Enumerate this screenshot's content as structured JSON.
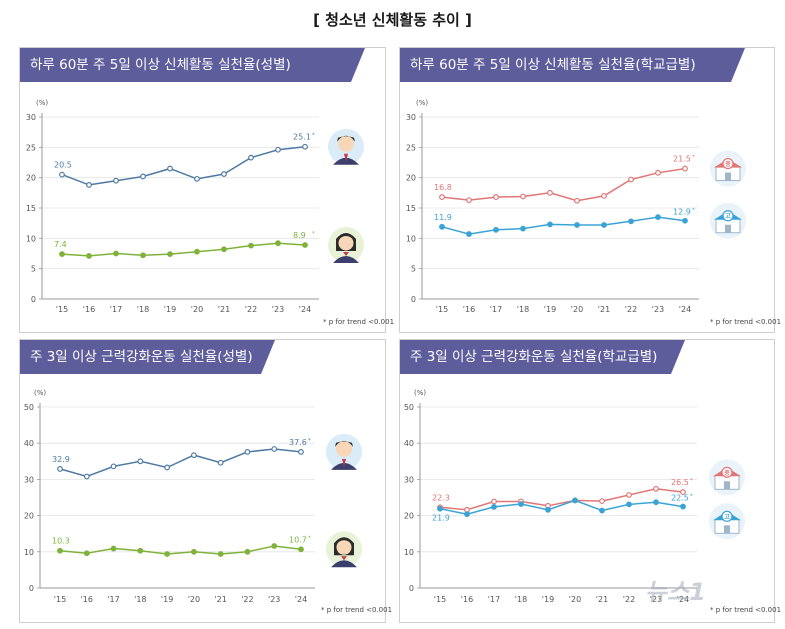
{
  "title": "[ 청소년 신체활동 추이 ]",
  "footnote": "* p for trend <0.001",
  "watermark": "뉴스1",
  "colors": {
    "header": "#5e5d9c",
    "boy": "#4f7aa3",
    "girl": "#7fb23a",
    "middle": "#e07676",
    "high": "#3aa3d6"
  },
  "chart_data": [
    {
      "type": "line",
      "title": "하루 60분 주 5일 이상 신체활동 실천율(성별)",
      "ylabel": "(%)",
      "ylim": [
        0,
        30
      ],
      "yticks": [
        "0",
        "5",
        "10",
        "15",
        "20",
        "25",
        "30"
      ],
      "categories": [
        "'15",
        "'16",
        "'17",
        "'18",
        "'19",
        "'20",
        "'21",
        "'22",
        "'23",
        "'24"
      ],
      "series": [
        {
          "key": "boy",
          "color": "#4f7aa3",
          "icon": "boy-student-icon",
          "values": [
            20.5,
            18.8,
            19.5,
            20.2,
            21.5,
            19.8,
            20.6,
            23.3,
            24.6,
            25.1
          ],
          "start_label": "20.5",
          "end_label": "25.1"
        },
        {
          "key": "girl",
          "color": "#7fb23a",
          "icon": "girl-student-icon",
          "values": [
            7.4,
            7.1,
            7.5,
            7.2,
            7.4,
            7.8,
            8.2,
            8.8,
            9.2,
            8.9
          ],
          "start_label": "7.4",
          "end_label": "8.9"
        }
      ]
    },
    {
      "type": "line",
      "title": "하루 60분 주 5일 이상 신체활동 실천율(학교급별)",
      "ylabel": "(%)",
      "ylim": [
        0,
        30
      ],
      "yticks": [
        "0",
        "5",
        "10",
        "15",
        "20",
        "25",
        "30"
      ],
      "categories": [
        "'15",
        "'16",
        "'17",
        "'18",
        "'19",
        "'20",
        "'21",
        "'22",
        "'23",
        "'24"
      ],
      "series": [
        {
          "key": "middle",
          "color": "#e07676",
          "icon": "middle-school-icon",
          "badge": "중",
          "values": [
            16.8,
            16.3,
            16.8,
            16.9,
            17.5,
            16.2,
            17.0,
            19.7,
            20.8,
            21.5
          ],
          "start_label": "16.8",
          "end_label": "21.5"
        },
        {
          "key": "high",
          "color": "#3aa3d6",
          "icon": "high-school-icon",
          "badge": "고",
          "values": [
            11.9,
            10.7,
            11.4,
            11.6,
            12.3,
            12.2,
            12.2,
            12.8,
            13.5,
            12.9
          ],
          "start_label": "11.9",
          "end_label": "12.9"
        }
      ]
    },
    {
      "type": "line",
      "title": "주 3일 이상 근력강화운동 실천율(성별)",
      "ylabel": "(%)",
      "ylim": [
        0,
        50
      ],
      "yticks": [
        "0",
        "10",
        "20",
        "30",
        "40",
        "50"
      ],
      "categories": [
        "'15",
        "'16",
        "'17",
        "'18",
        "'19",
        "'20",
        "'21",
        "'22",
        "'23",
        "'24"
      ],
      "series": [
        {
          "key": "boy",
          "color": "#4f7aa3",
          "icon": "boy-student-icon",
          "values": [
            32.9,
            30.8,
            33.6,
            35.0,
            33.3,
            36.7,
            34.6,
            37.6,
            38.4,
            37.6
          ],
          "start_label": "32.9",
          "end_label": "37.6"
        },
        {
          "key": "girl",
          "color": "#7fb23a",
          "icon": "girl-student-icon",
          "values": [
            10.3,
            9.6,
            10.9,
            10.3,
            9.4,
            10.0,
            9.4,
            10.0,
            11.6,
            10.7
          ],
          "start_label": "10.3",
          "end_label": "10.7"
        }
      ]
    },
    {
      "type": "line",
      "title": "주 3일 이상 근력강화운동 실천율(학교급별)",
      "ylabel": "(%)",
      "ylim": [
        0,
        50
      ],
      "yticks": [
        "0",
        "10",
        "20",
        "30",
        "40",
        "50"
      ],
      "categories": [
        "'15",
        "'16",
        "'17",
        "'18",
        "'19",
        "'20",
        "'21",
        "'22",
        "'23",
        "'24"
      ],
      "series": [
        {
          "key": "middle",
          "color": "#e07676",
          "icon": "middle-school-icon",
          "badge": "중",
          "values": [
            22.3,
            21.6,
            23.9,
            23.9,
            22.7,
            24.2,
            24.0,
            25.7,
            27.4,
            26.5
          ],
          "start_label": "22.3",
          "end_label": "26.5"
        },
        {
          "key": "high",
          "color": "#3aa3d6",
          "icon": "high-school-icon",
          "badge": "고",
          "values": [
            21.9,
            20.4,
            22.4,
            23.2,
            21.6,
            24.2,
            21.4,
            23.1,
            23.7,
            22.5
          ],
          "start_label": "21.9",
          "end_label": "22.5"
        }
      ]
    }
  ]
}
